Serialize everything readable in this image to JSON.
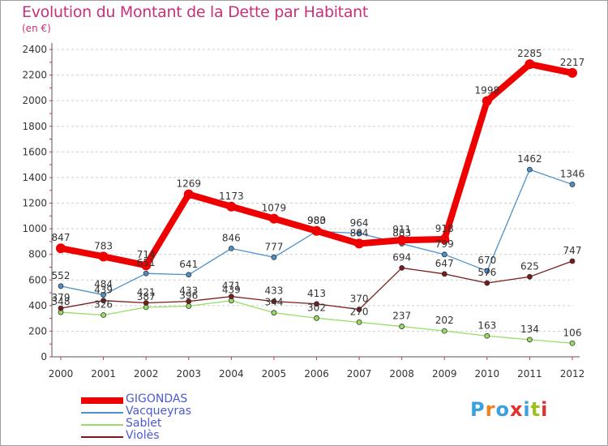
{
  "header": {
    "title": "Evolution du Montant de la Dette par Habitant",
    "unit": "(en €)"
  },
  "logo": {
    "text": "Proxiti",
    "colors": [
      "#3aa0e0",
      "#f08020",
      "#3aa0e0",
      "#e03030",
      "#3aa0e0",
      "#a0c020",
      "#e03030"
    ]
  },
  "chart_data": {
    "type": "line",
    "x": [
      "2000",
      "2001",
      "2002",
      "2003",
      "2004",
      "2005",
      "2006",
      "2007",
      "2008",
      "2009",
      "2010",
      "2011",
      "2012"
    ],
    "ylim": [
      0,
      2400
    ],
    "yticks": [
      0,
      200,
      400,
      600,
      800,
      1000,
      1200,
      1400,
      1600,
      1800,
      2000,
      2200,
      2400
    ],
    "grid": "horizontal-dashed",
    "legend_position": "bottom-left",
    "series": [
      {
        "name": "GIGONDAS",
        "color": "#ee0000",
        "values": [
          847,
          783,
          714,
          1269,
          1173,
          1079,
          983,
          884,
          911,
          918,
          1998,
          2285,
          2217
        ]
      },
      {
        "name": "Vacqueyras",
        "color": "#4b91cc",
        "values": [
          552,
          484,
          651,
          641,
          846,
          777,
          980,
          964,
          883,
          799,
          670,
          1462,
          1346
        ]
      },
      {
        "name": "Sablet",
        "color": "#99dd66",
        "values": [
          348,
          326,
          387,
          396,
          439,
          344,
          302,
          270,
          237,
          202,
          163,
          134,
          106
        ]
      },
      {
        "name": "Violès",
        "color": "#7a1a1a",
        "values": [
          379,
          439,
          421,
          433,
          471,
          433,
          413,
          370,
          694,
          647,
          576,
          625,
          747
        ]
      }
    ]
  }
}
